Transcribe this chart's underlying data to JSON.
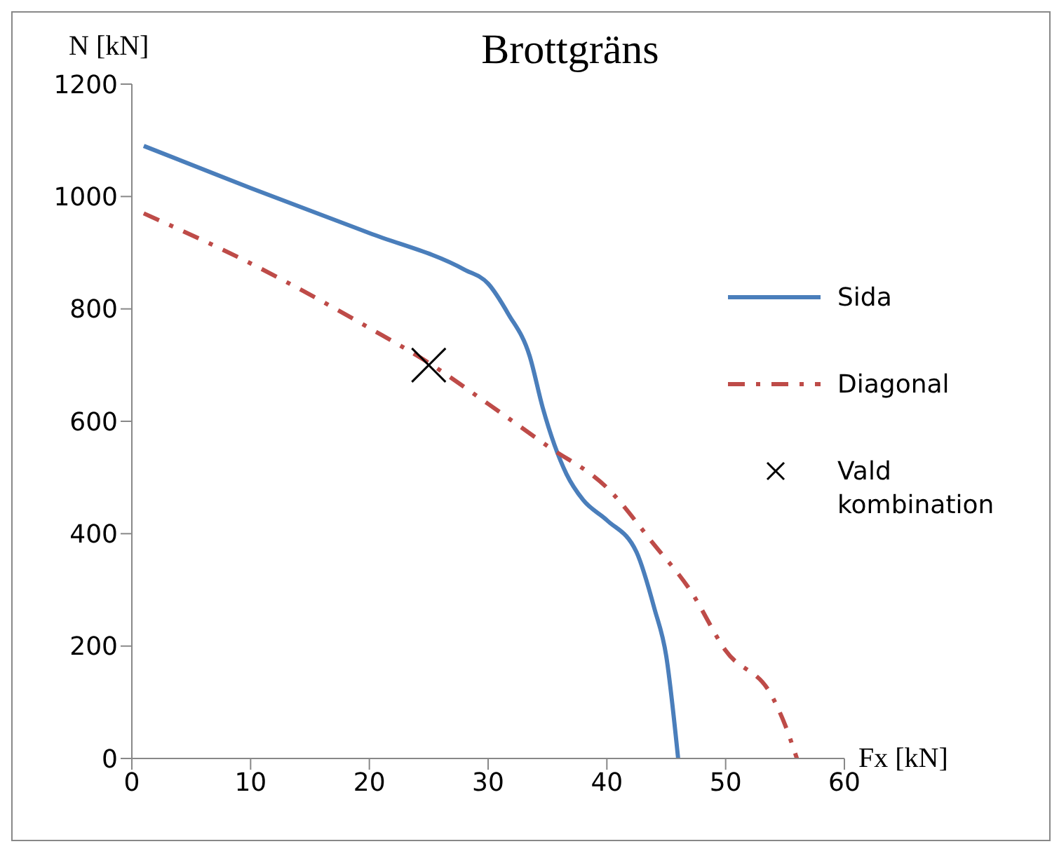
{
  "chart_data": {
    "type": "line",
    "title": "Brottgräns",
    "xlabel": "Fx [kN]",
    "ylabel": "N [kN]",
    "xlim": [
      0,
      60
    ],
    "xticks": [
      0,
      10,
      20,
      30,
      40,
      50,
      60
    ],
    "ylim": [
      0,
      1200
    ],
    "yticks": [
      0,
      200,
      400,
      600,
      800,
      1000,
      1200
    ],
    "grid": false,
    "legend": "right",
    "series": [
      {
        "name": "Sida",
        "type": "line",
        "color": "#4a7ebb",
        "line_style": "solid",
        "marker": "none",
        "x": [
          1,
          10,
          20,
          28,
          30,
          31.7,
          33.5,
          34.6,
          36.6,
          38,
          40,
          42.5,
          44,
          45,
          46
        ],
        "values": [
          1090,
          1015,
          935,
          870,
          845,
          791,
          716,
          624,
          506,
          460,
          424,
          367,
          267,
          182,
          0
        ]
      },
      {
        "name": "Diagonal",
        "type": "line",
        "color": "#be4b48",
        "line_style": "dashdot",
        "marker": "none",
        "x": [
          1,
          10,
          20,
          25,
          30,
          35,
          40,
          44,
          47,
          50,
          54,
          55,
          56
        ],
        "values": [
          970,
          881,
          766,
          704,
          631,
          556,
          482,
          380,
          300,
          192,
          107,
          60,
          0
        ]
      },
      {
        "name": "Vald kombination",
        "type": "scatter",
        "color": "#000000",
        "marker": "cross",
        "x": [
          25
        ],
        "values": [
          700
        ]
      }
    ]
  }
}
